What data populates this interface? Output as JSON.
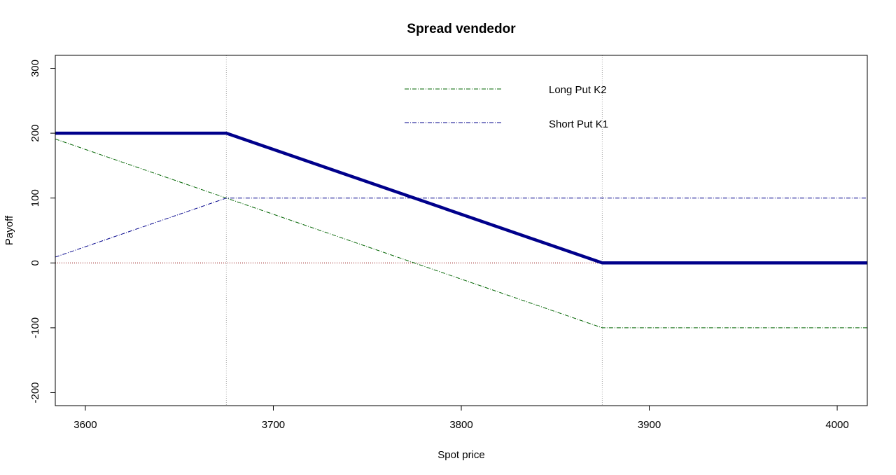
{
  "chart_data": {
    "type": "line",
    "title": "Spread vendedor",
    "xlabel": "Spot price",
    "ylabel": "Payoff",
    "xlim": [
      3584,
      4016
    ],
    "ylim": [
      -220,
      320
    ],
    "xticks": [
      3600,
      3700,
      3800,
      3900,
      4000
    ],
    "yticks": [
      -200,
      -100,
      0,
      100,
      200,
      300
    ],
    "vlines": [
      3675,
      3875
    ],
    "hline": 0,
    "legend_position": "top-center",
    "series": [
      {
        "name": "Long Put K2",
        "color": "#006400",
        "style": "dashdot",
        "x": [
          3584,
          3875,
          4016
        ],
        "y": [
          191,
          -100,
          -100
        ]
      },
      {
        "name": "Short Put K1",
        "color": "#00008B",
        "style": "dashdot",
        "x": [
          3584,
          3675,
          4016
        ],
        "y": [
          9,
          100,
          100
        ]
      },
      {
        "name": "",
        "color": "#00008B",
        "style": "solid-thick",
        "x": [
          3584,
          3675,
          3875,
          4016
        ],
        "y": [
          200,
          200,
          0,
          0
        ]
      }
    ],
    "colors": {
      "zero_line": "#8B0000",
      "vlines": "#aaaaaa",
      "frame": "#000000"
    }
  }
}
